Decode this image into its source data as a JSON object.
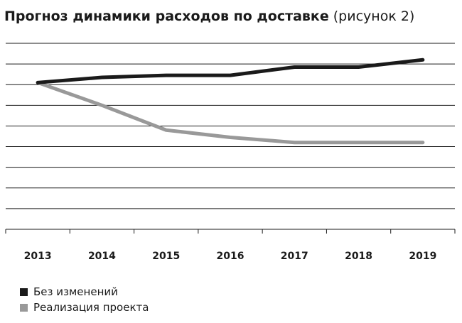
{
  "title_bold": "Прогноз динамики расходов по доставке",
  "title_normal": "(рисунок 2)",
  "chart_data": {
    "type": "line",
    "x": [
      "2013",
      "2014",
      "2015",
      "2016",
      "2017",
      "2018",
      "2019"
    ],
    "ylim": [
      0,
      9
    ],
    "grid": true,
    "legend_position": "bottom-left",
    "series": [
      {
        "name": "Без изменений",
        "color": "#1a1a1a",
        "values": [
          7.1,
          7.35,
          7.45,
          7.45,
          7.85,
          7.85,
          8.2
        ]
      },
      {
        "name": "Реализация проекта",
        "color": "#999999",
        "values": [
          7.1,
          6.0,
          4.8,
          4.45,
          4.2,
          4.2,
          4.2
        ]
      }
    ]
  }
}
